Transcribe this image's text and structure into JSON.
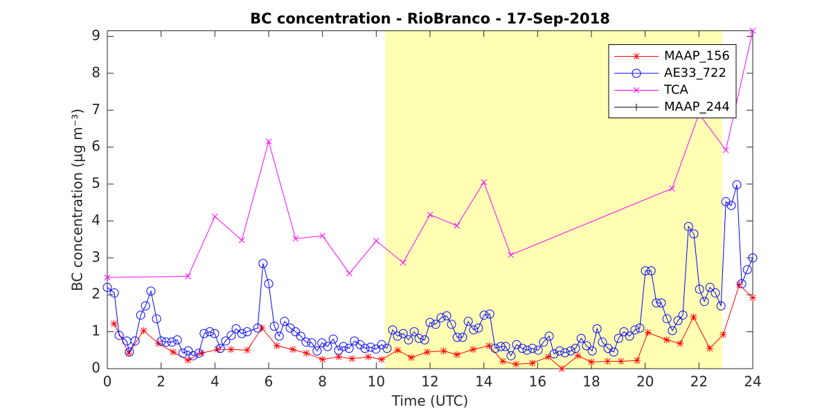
{
  "chart_data": {
    "type": "line",
    "title": "BC concentration  - RioBranco - 17-Sep-2018",
    "xlabel": "Time (UTC)",
    "ylabel": "BC concentration (μg m⁻³)",
    "xlim": [
      0,
      24
    ],
    "ylim": [
      0,
      9.15
    ],
    "xticks": [
      0,
      2,
      4,
      6,
      8,
      10,
      12,
      14,
      16,
      18,
      20,
      22,
      24
    ],
    "yticks": [
      0,
      1,
      2,
      3,
      4,
      5,
      6,
      7,
      8,
      9
    ],
    "grid": false,
    "legend_position": "northeast",
    "shaded_x": [
      10.33,
      22.87
    ],
    "shaded_color": "#ffffb3",
    "series": [
      {
        "name": "MAAP_156",
        "color": "#ff0000",
        "marker": "asterisk",
        "x": [
          0.25,
          0.8,
          1.35,
          1.9,
          2.45,
          3,
          3.5,
          4.1,
          4.6,
          5.2,
          5.75,
          6.3,
          6.9,
          7.4,
          8,
          8.6,
          9.1,
          9.7,
          10.2,
          10.8,
          11.3,
          11.9,
          12.5,
          13,
          13.6,
          14.2,
          14.7,
          15.2,
          15.8,
          16.4,
          16.9,
          17.5,
          18,
          18.6,
          19.1,
          19.7,
          20.1,
          20.8,
          21.3,
          21.8,
          22.4,
          22.9,
          23.5,
          24
        ],
        "values": [
          1.22,
          0.42,
          1.03,
          0.68,
          0.45,
          0.23,
          0.42,
          0.52,
          0.52,
          0.5,
          1.1,
          0.62,
          0.52,
          0.42,
          0.25,
          0.32,
          0.27,
          0.32,
          0.25,
          0.5,
          0.3,
          0.45,
          0.48,
          0.38,
          0.52,
          0.62,
          0.2,
          0.12,
          0.15,
          0.32,
          0,
          0.35,
          0.18,
          0.2,
          0.2,
          0.22,
          0.98,
          0.78,
          0.68,
          1.4,
          0.55,
          0.92,
          2.27,
          1.92
        ]
      },
      {
        "name": "AE33_722",
        "color": "#0000ff",
        "marker": "circle",
        "x": [
          0,
          0.26,
          0.44,
          0.72,
          0.82,
          1.03,
          1.24,
          1.42,
          1.62,
          1.83,
          2.01,
          2.19,
          2.4,
          2.6,
          2.81,
          3.01,
          3.19,
          3.4,
          3.6,
          3.81,
          3.99,
          4.2,
          4.4,
          4.61,
          4.79,
          5,
          5.2,
          5.59,
          5.79,
          6,
          6.21,
          6.39,
          6.59,
          6.8,
          7,
          7.19,
          7.39,
          7.6,
          7.8,
          7.98,
          8.19,
          8.4,
          8.6,
          8.78,
          8.99,
          9.19,
          9.4,
          9.58,
          9.79,
          9.99,
          10.2,
          10.4,
          10.61,
          10.79,
          11,
          11.2,
          11.41,
          11.59,
          11.8,
          12,
          12.21,
          12.41,
          12.62,
          12.8,
          13.01,
          13.21,
          13.42,
          13.62,
          13.8,
          14.01,
          14.22,
          14.42,
          14.63,
          14.81,
          15.01,
          15.22,
          15.43,
          15.61,
          15.81,
          16.02,
          16.22,
          16.43,
          16.61,
          16.82,
          17.02,
          17.23,
          17.41,
          17.62,
          17.82,
          18.03,
          18.21,
          18.41,
          18.62,
          18.83,
          19.01,
          19.21,
          19.42,
          19.62,
          19.8,
          20.01,
          20.22,
          20.42,
          20.6,
          20.81,
          21.01,
          21.22,
          21.4,
          21.61,
          21.81,
          22.02,
          22.2,
          22.41,
          22.61,
          22.82,
          23,
          23.2,
          23.41,
          23.59,
          23.8,
          24
        ],
        "values": [
          2.2,
          2.05,
          0.9,
          0.75,
          0.45,
          0.75,
          1.45,
          1.7,
          2.1,
          1.35,
          0.75,
          0.72,
          0.72,
          0.78,
          0.42,
          0.48,
          0.35,
          0.42,
          0.95,
          1,
          0.95,
          0.55,
          0.75,
          0.9,
          1.08,
          0.95,
          1,
          1.1,
          2.85,
          2.3,
          1.15,
          0.88,
          1.28,
          1.1,
          1,
          0.88,
          0.72,
          0.7,
          0.48,
          0.7,
          0.6,
          0.8,
          0.5,
          0.6,
          0.55,
          0.75,
          0.65,
          0.55,
          0.58,
          0.53,
          0.65,
          0.55,
          1.05,
          0.88,
          0.95,
          0.78,
          1,
          0.82,
          0.78,
          1.25,
          1.2,
          1.38,
          1.43,
          1.2,
          0.85,
          0.85,
          1.28,
          1.05,
          1.1,
          1.45,
          1.48,
          0.55,
          0.6,
          0.6,
          0.35,
          0.65,
          0.55,
          0.5,
          0.55,
          0.5,
          0.72,
          0.88,
          0.4,
          0.48,
          0.43,
          0.48,
          0.55,
          0.82,
          0.62,
          0.48,
          1.08,
          0.72,
          0.55,
          0.45,
          0.82,
          1,
          0.88,
          1.05,
          1.1,
          2.65,
          2.65,
          1.78,
          1.78,
          1.35,
          1.03,
          1.3,
          1.45,
          3.85,
          3.65,
          2.15,
          1.82,
          2.2,
          2.05,
          1.7,
          4.52,
          4.42,
          4.98,
          2.3,
          2.68,
          3
        ]
      },
      {
        "name": "TCA",
        "color": "#ff00ff",
        "marker": "x",
        "x": [
          0,
          3,
          4,
          5,
          6,
          7,
          8,
          9,
          10,
          11,
          12,
          13,
          14,
          15,
          21,
          22,
          23,
          24
        ],
        "values": [
          2.47,
          2.5,
          4.12,
          3.48,
          6.15,
          3.52,
          3.6,
          2.58,
          3.46,
          2.87,
          4.17,
          3.87,
          5.05,
          3.08,
          4.88,
          6.9,
          5.92,
          9.15
        ]
      },
      {
        "name": "MAAP_244",
        "color": "#000000",
        "marker": "plus",
        "x": [],
        "values": []
      }
    ]
  }
}
